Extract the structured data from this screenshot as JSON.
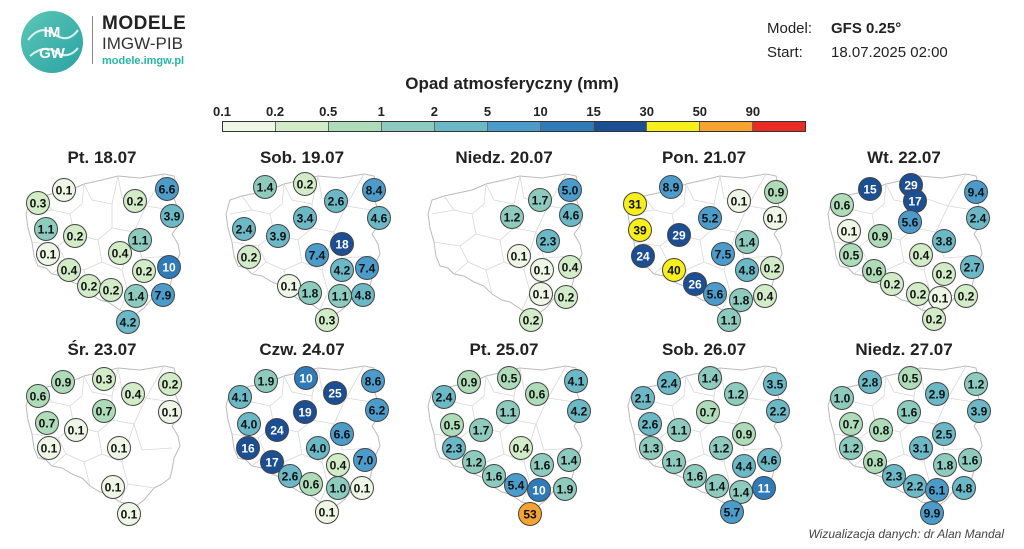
{
  "header": {
    "logo_text": "IMGW",
    "brand_title": "MODELE",
    "brand_subtitle": "IMGW-PIB",
    "brand_url": "modele.imgw.pl"
  },
  "meta": {
    "model_label": "Model:",
    "model_value": "GFS 0.25°",
    "start_label": "Start:",
    "start_value": "18.07.2025 02:00"
  },
  "legend": {
    "title": "Opad atmosferyczny (mm)",
    "ticks": [
      "0.1",
      "0.2",
      "0.5",
      "1",
      "2",
      "5",
      "10",
      "15",
      "30",
      "50",
      "90"
    ],
    "colors": [
      "#eef6e6",
      "#d2ecc8",
      "#afdcb8",
      "#8dcbbe",
      "#6bb8c6",
      "#4b9ccb",
      "#2f7ab8",
      "#1b4e92",
      "#f6ef1a",
      "#f6a331",
      "#ea2b23"
    ]
  },
  "days": [
    {
      "label": "Pt. 18.07",
      "values": [
        "0.1",
        "6.6",
        "0.3",
        "0.2",
        "3.9",
        "1.1",
        "0.2",
        "1.1",
        "0.1",
        "0.4",
        "0.4",
        "0.2",
        "10",
        "0.2",
        "0.2",
        "1.4",
        "7.9",
        "4.2"
      ]
    },
    {
      "label": "Sob. 19.07",
      "values": [
        "1.4",
        "0.2",
        "8.4",
        "2.6",
        "4.6",
        "3.4",
        "2.4",
        "3.9",
        "18",
        "7.4",
        "0.2",
        "7.4",
        "4.2",
        "0.1",
        "1.8",
        "1.1",
        "4.8",
        "0.3"
      ]
    },
    {
      "label": "Niedz. 20.07",
      "values": [
        "5.0",
        "1.7",
        "1.2",
        "4.6",
        "2.3",
        "0.1",
        "0.1",
        "0.4",
        "0.1",
        "0.2",
        "0.2"
      ]
    },
    {
      "label": "Pon. 21.07",
      "values": [
        "8.9",
        "0.9",
        "31",
        "0.1",
        "5.2",
        "0.1",
        "39",
        "29",
        "1.4",
        "24",
        "7.5",
        "40",
        "4.8",
        "0.2",
        "26",
        "5.6",
        "1.8",
        "0.4",
        "1.1"
      ]
    },
    {
      "label": "Wt. 22.07",
      "values": [
        "29",
        "15",
        "9.4",
        "17",
        "0.6",
        "5.6",
        "2.4",
        "0.1",
        "0.9",
        "3.8",
        "0.5",
        "0.4",
        "0.6",
        "0.2",
        "2.7",
        "0.2",
        "0.2",
        "0.1",
        "0.2",
        "0.2"
      ]
    },
    {
      "label": "Śr. 23.07",
      "values": [
        "0.9",
        "0.3",
        "0.2",
        "0.6",
        "0.4",
        "0.7",
        "0.1",
        "0.7",
        "0.1",
        "0.1",
        "0.1",
        "0.1",
        "0.1"
      ]
    },
    {
      "label": "Czw. 24.07",
      "values": [
        "1.9",
        "10",
        "8.6",
        "4.1",
        "25",
        "6.2",
        "19",
        "4.0",
        "24",
        "6.6",
        "16",
        "4.0",
        "17",
        "0.4",
        "7.0",
        "2.6",
        "0.6",
        "1.0",
        "0.1",
        "0.1"
      ]
    },
    {
      "label": "Pt. 25.07",
      "values": [
        "0.9",
        "0.5",
        "4.1",
        "2.4",
        "0.6",
        "4.2",
        "1.1",
        "0.5",
        "1.7",
        "2.3",
        "0.4",
        "1.2",
        "1.6",
        "1.4",
        "1.6",
        "5.4",
        "10",
        "1.9",
        "53"
      ]
    },
    {
      "label": "Sob. 26.07",
      "values": [
        "2.4",
        "1.4",
        "3.5",
        "2.1",
        "1.2",
        "2.2",
        "0.7",
        "2.6",
        "1.1",
        "0.9",
        "1.3",
        "1.2",
        "1.1",
        "4.4",
        "4.6",
        "1.6",
        "1.4",
        "1.4",
        "11",
        "5.7"
      ]
    },
    {
      "label": "Niedz. 27.07",
      "values": [
        "2.8",
        "0.5",
        "1.2",
        "1.0",
        "2.9",
        "3.9",
        "1.6",
        "0.7",
        "0.8",
        "2.5",
        "1.2",
        "3.1",
        "0.8",
        "1.8",
        "1.6",
        "2.3",
        "2.2",
        "6.1",
        "4.8",
        "9.9"
      ]
    }
  ],
  "credit": "Wizualizacja danych: dr Alan Mandal"
}
